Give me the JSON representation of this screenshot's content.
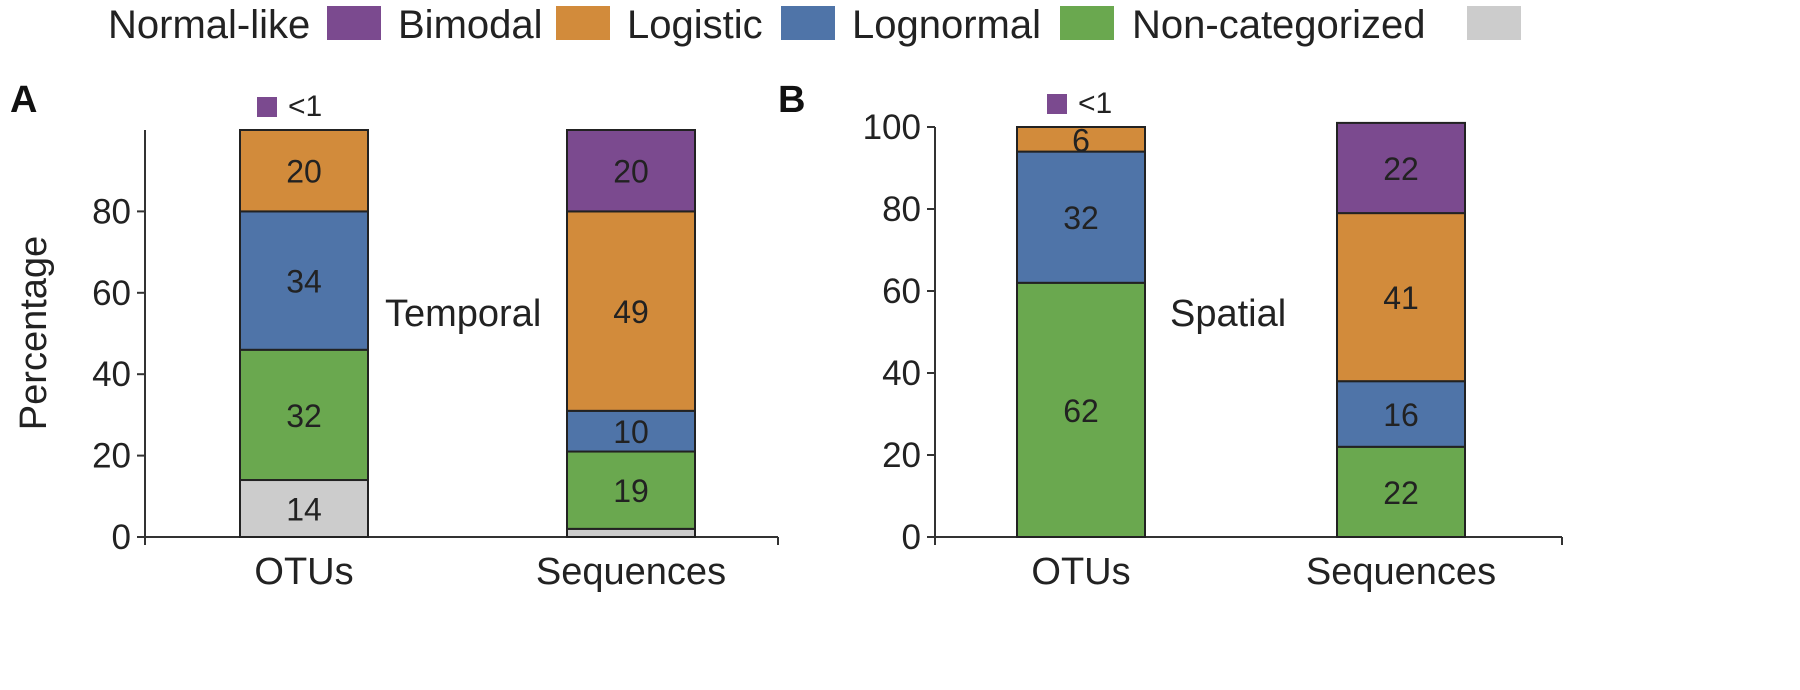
{
  "legend": {
    "entries": [
      {
        "name": "Normal-like",
        "color": "#7b4a8f"
      },
      {
        "name": "Bimodal",
        "color": "#d28b3b"
      },
      {
        "name": "Logistic",
        "color": "#4f74a8"
      },
      {
        "name": "Lognormal",
        "color": "#6aa84f"
      },
      {
        "name": "Non-categorized",
        "color": "#cccccc"
      }
    ]
  },
  "chart_data": [
    {
      "type": "bar",
      "stacked": true,
      "panel_label": "A",
      "annotation": "Temporal",
      "ylabel": "Percentage",
      "ylim": [
        0,
        100
      ],
      "yticks": [
        0,
        20,
        40,
        60,
        80
      ],
      "categories": [
        "OTUs",
        "Sequences"
      ],
      "marker_note": {
        "text": "<1",
        "color": "#7b4a8f",
        "category": "OTUs"
      },
      "series": [
        {
          "name": "Non-categorized",
          "color": "#cccccc",
          "values": [
            14,
            2
          ],
          "labels": [
            "14",
            ""
          ]
        },
        {
          "name": "Lognormal",
          "color": "#6aa84f",
          "values": [
            32,
            19
          ],
          "labels": [
            "32",
            "19"
          ]
        },
        {
          "name": "Logistic",
          "color": "#4f74a8",
          "values": [
            34,
            10
          ],
          "labels": [
            "34",
            "10"
          ]
        },
        {
          "name": "Bimodal",
          "color": "#d28b3b",
          "values": [
            20,
            49
          ],
          "labels": [
            "20",
            "49"
          ]
        },
        {
          "name": "Normal-like",
          "color": "#7b4a8f",
          "values": [
            0,
            20
          ],
          "labels": [
            "",
            "20"
          ]
        }
      ]
    },
    {
      "type": "bar",
      "stacked": true,
      "panel_label": "B",
      "annotation": "Spatial",
      "ylabel": "",
      "ylim": [
        0,
        100
      ],
      "yticks": [
        0,
        20,
        40,
        60,
        80,
        100
      ],
      "categories": [
        "OTUs",
        "Sequences"
      ],
      "marker_note": {
        "text": "<1",
        "color": "#7b4a8f",
        "category": "OTUs"
      },
      "series": [
        {
          "name": "Non-categorized",
          "color": "#cccccc",
          "values": [
            0,
            0
          ],
          "labels": [
            "",
            ""
          ]
        },
        {
          "name": "Lognormal",
          "color": "#6aa84f",
          "values": [
            62,
            22
          ],
          "labels": [
            "62",
            "22"
          ]
        },
        {
          "name": "Logistic",
          "color": "#4f74a8",
          "values": [
            32,
            16
          ],
          "labels": [
            "32",
            "16"
          ]
        },
        {
          "name": "Bimodal",
          "color": "#d28b3b",
          "values": [
            6,
            41
          ],
          "labels": [
            "6",
            "41"
          ]
        },
        {
          "name": "Normal-like",
          "color": "#7b4a8f",
          "values": [
            0,
            22
          ],
          "labels": [
            "",
            "22"
          ]
        }
      ]
    }
  ]
}
